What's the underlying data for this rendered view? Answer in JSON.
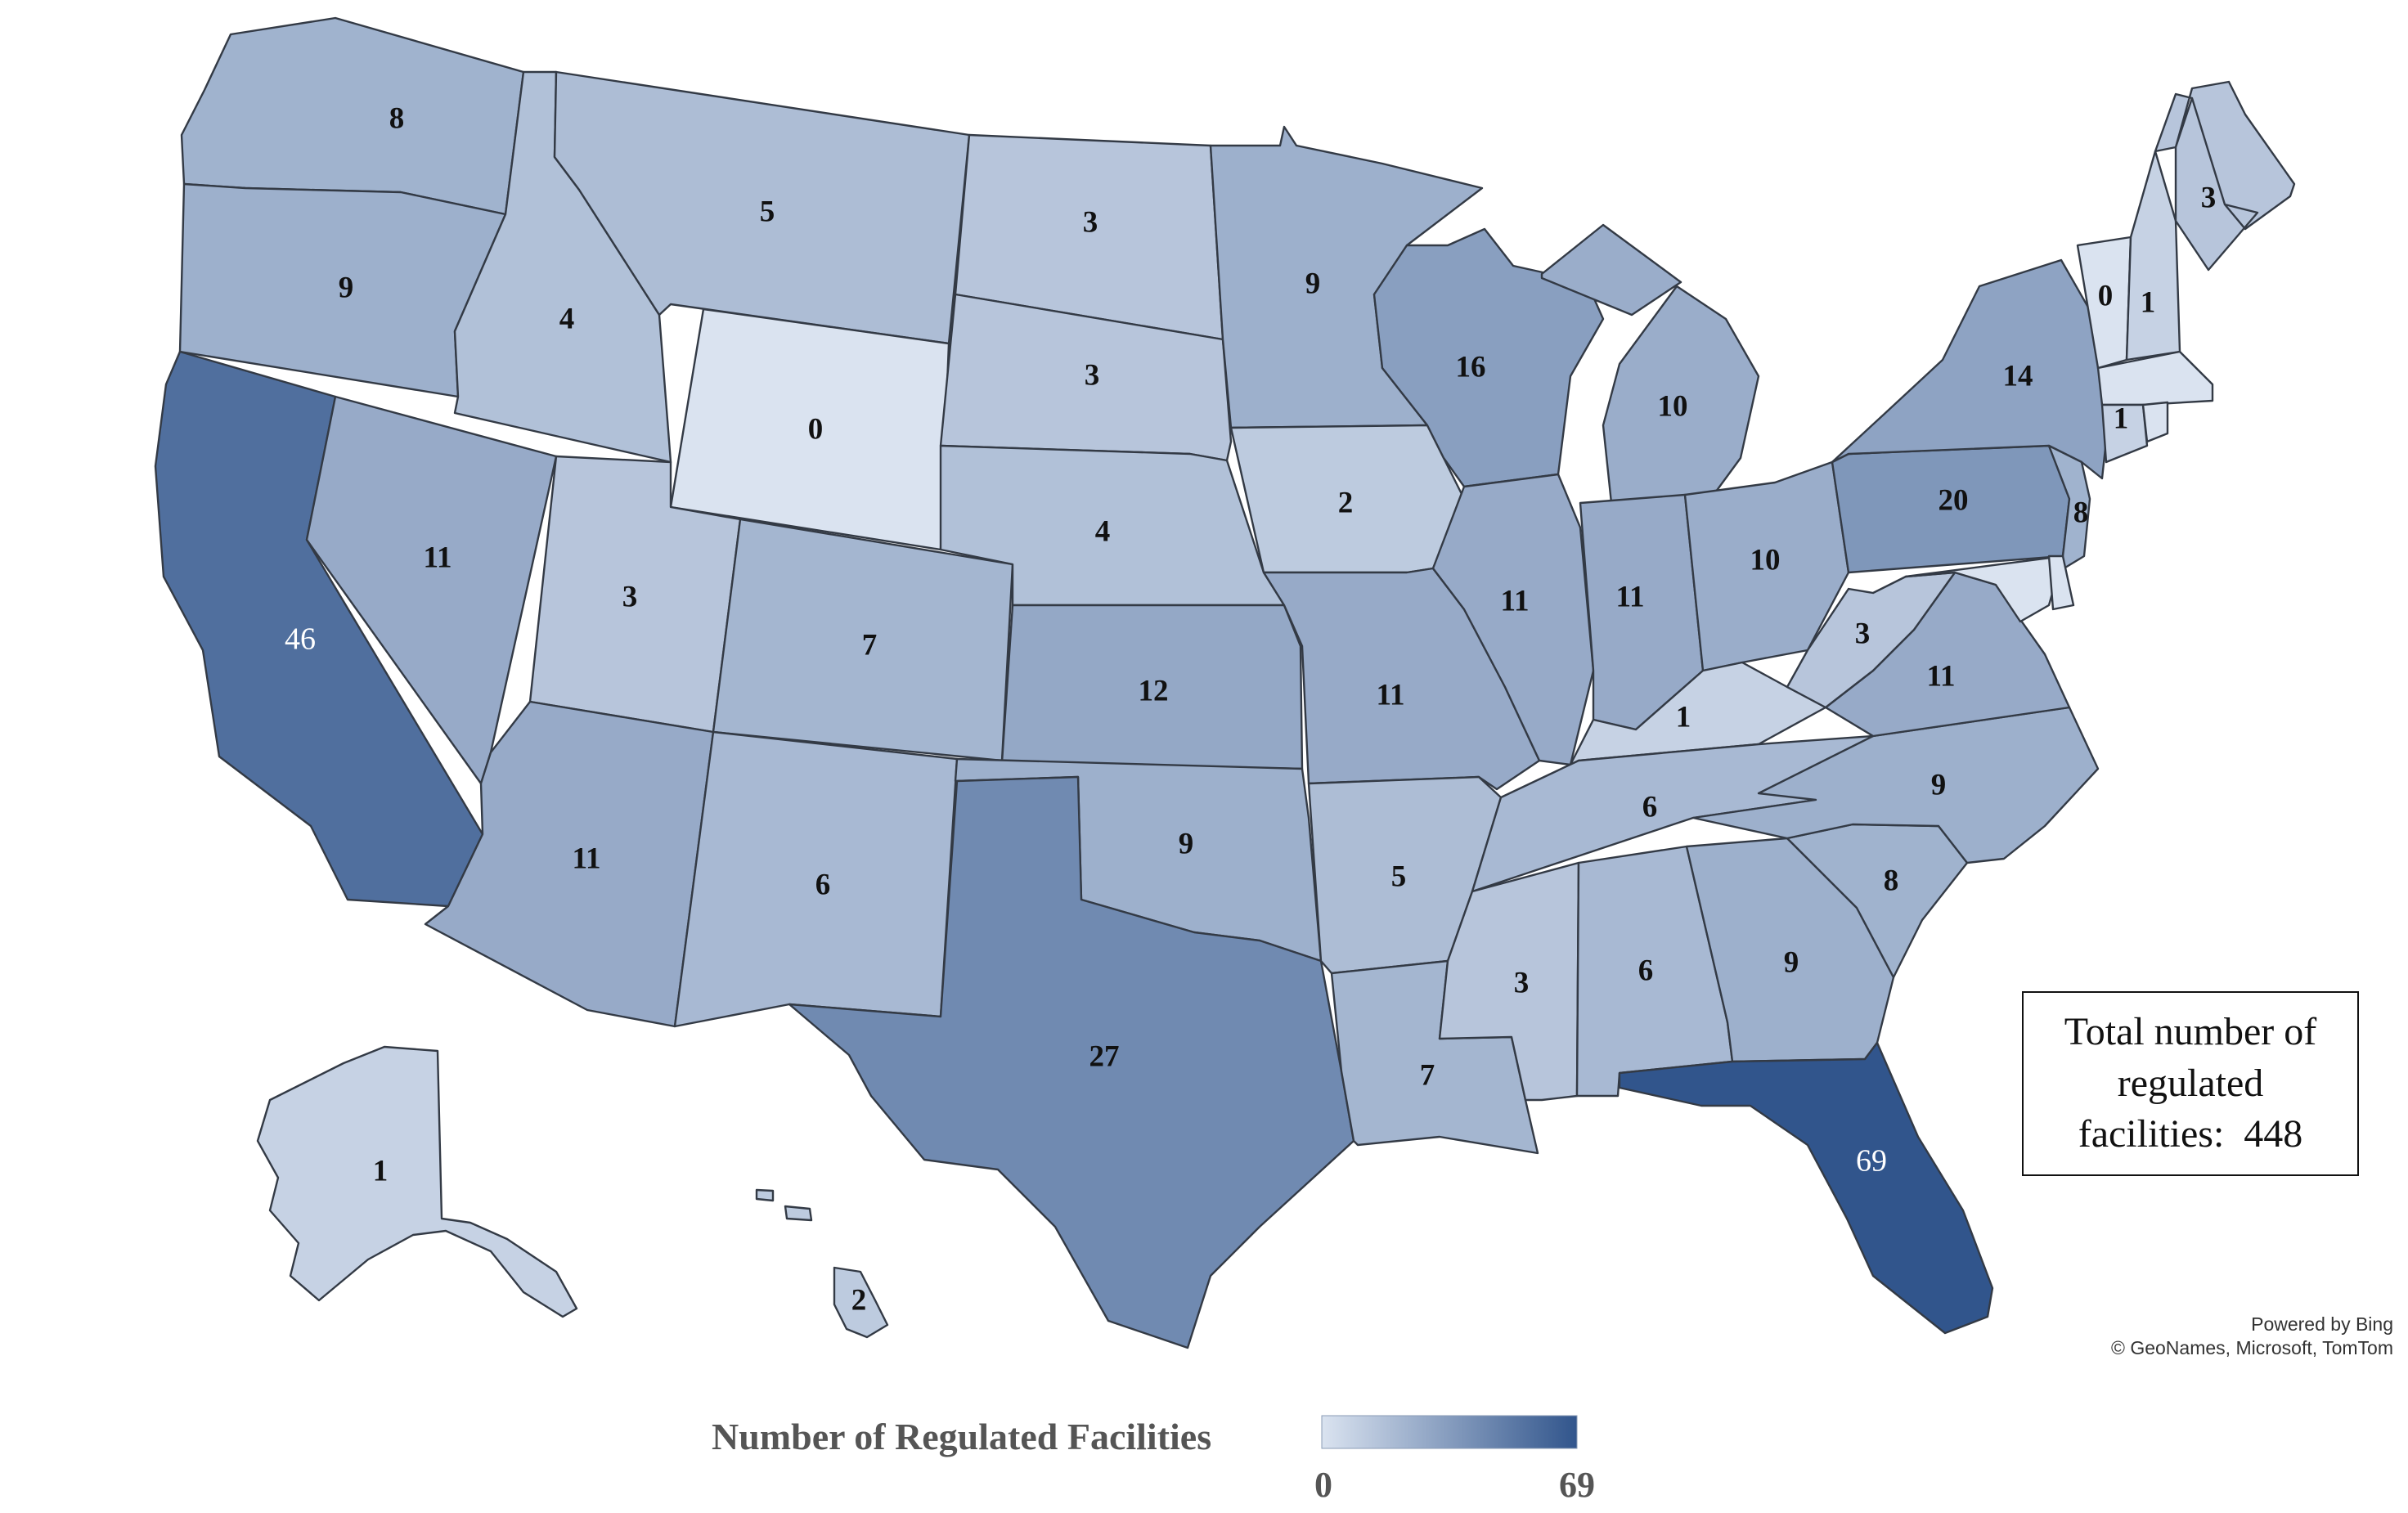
{
  "map": {
    "states": [
      {
        "id": "WA",
        "count": "8"
      },
      {
        "id": "OR",
        "count": "9"
      },
      {
        "id": "CA",
        "count": "46"
      },
      {
        "id": "NV",
        "count": "11"
      },
      {
        "id": "ID",
        "count": "4"
      },
      {
        "id": "MT",
        "count": "5"
      },
      {
        "id": "WY",
        "count": "0"
      },
      {
        "id": "UT",
        "count": "3"
      },
      {
        "id": "AZ",
        "count": "11"
      },
      {
        "id": "CO",
        "count": "7"
      },
      {
        "id": "NM",
        "count": "6"
      },
      {
        "id": "ND",
        "count": "3"
      },
      {
        "id": "SD",
        "count": "3"
      },
      {
        "id": "NE",
        "count": "4"
      },
      {
        "id": "KS",
        "count": "12"
      },
      {
        "id": "OK",
        "count": "9"
      },
      {
        "id": "TX",
        "count": "27"
      },
      {
        "id": "MN",
        "count": "9"
      },
      {
        "id": "IA",
        "count": "2"
      },
      {
        "id": "MO",
        "count": "11"
      },
      {
        "id": "AR",
        "count": "5"
      },
      {
        "id": "LA",
        "count": "7"
      },
      {
        "id": "WI",
        "count": "16"
      },
      {
        "id": "IL",
        "count": "11"
      },
      {
        "id": "MI",
        "count": "10"
      },
      {
        "id": "IN",
        "count": "11"
      },
      {
        "id": "OH",
        "count": "10"
      },
      {
        "id": "KY",
        "count": "1"
      },
      {
        "id": "TN",
        "count": "6"
      },
      {
        "id": "MS",
        "count": "3"
      },
      {
        "id": "AL",
        "count": "6"
      },
      {
        "id": "GA",
        "count": "9"
      },
      {
        "id": "FL",
        "count": "69"
      },
      {
        "id": "SC",
        "count": "8"
      },
      {
        "id": "NC",
        "count": "9"
      },
      {
        "id": "VA",
        "count": "11"
      },
      {
        "id": "WV",
        "count": "3"
      },
      {
        "id": "PA",
        "count": "20"
      },
      {
        "id": "NY",
        "count": "14"
      },
      {
        "id": "NJ",
        "count": "8"
      },
      {
        "id": "VT",
        "count": "0"
      },
      {
        "id": "NH",
        "count": "1"
      },
      {
        "id": "ME",
        "count": "3"
      },
      {
        "id": "CT",
        "count": "1"
      },
      {
        "id": "AK",
        "count": "1"
      },
      {
        "id": "HI",
        "count": "2"
      }
    ],
    "unlabeled": [
      "MA",
      "RI",
      "DE",
      "MD"
    ]
  },
  "colors": {
    "low": "#dae3f0",
    "high": "#31558c",
    "border": "#333a45"
  },
  "legend": {
    "title": "Number of Regulated Facilities",
    "min": "0",
    "max": "69"
  },
  "total_box": {
    "text": "Total number of\nregulated\nfacilities:  448"
  },
  "credit": {
    "line1": "Powered by Bing",
    "line2": "© GeoNames, Microsoft, TomTom"
  }
}
